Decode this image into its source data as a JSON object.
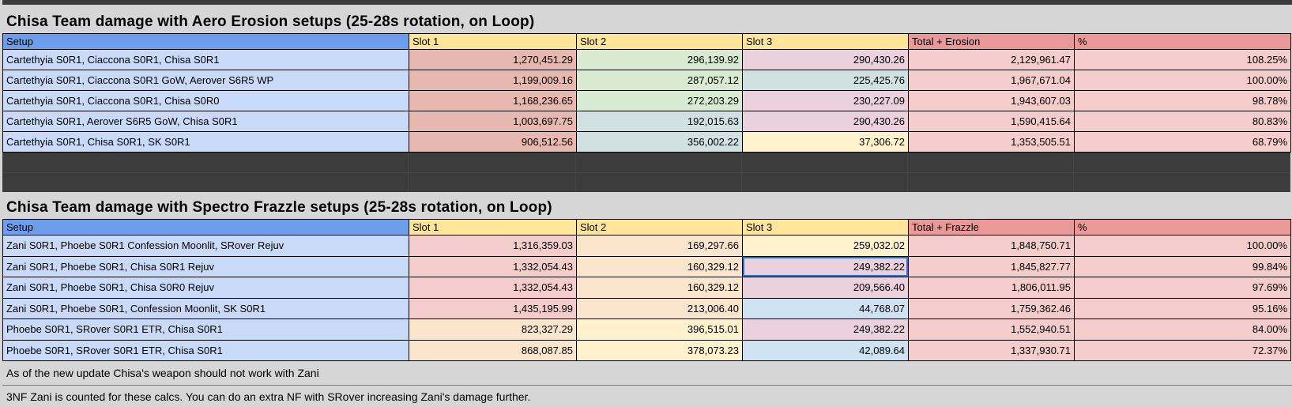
{
  "colors": {
    "header_setup_bg": "#6d9eeb",
    "header_slot_bg": "#ffe599",
    "header_total_bg": "#ea9999",
    "setup_cell_bg": "#c9daf8",
    "total_cell_bg": "#f4cccc",
    "selection_border": "#1a73e8",
    "title_bar_bg": "#d6d6d6",
    "dark_band_bg": "#3c3c3c"
  },
  "tables": [
    {
      "title": "Chisa Team damage with Aero Erosion setups (25-28s rotation, on Loop)",
      "headers": [
        "Setup",
        "Slot 1",
        "Slot 2",
        "Slot 3",
        "Total + Erosion",
        "%"
      ],
      "rows": [
        {
          "cells": [
            {
              "v": "Cartethyia S0R1, Ciaccona S0R1, Chisa S0R1",
              "bg": "#c9daf8"
            },
            {
              "v": "1,270,451.29",
              "bg": "#e6b8af"
            },
            {
              "v": "296,139.92",
              "bg": "#d9ead3"
            },
            {
              "v": "290,430.26",
              "bg": "#ead1dc"
            },
            {
              "v": "2,129,961.47",
              "bg": "#f4cccc"
            },
            {
              "v": "108.25%",
              "bg": "#f4cccc"
            }
          ]
        },
        {
          "cells": [
            {
              "v": "Cartethyia S0R1, Ciaccona S0R1 GoW, Aerover S6R5 WP",
              "bg": "#c9daf8"
            },
            {
              "v": "1,199,009.16",
              "bg": "#e6b8af"
            },
            {
              "v": "287,057.12",
              "bg": "#d9ead3"
            },
            {
              "v": "225,425.76",
              "bg": "#d0e0e3"
            },
            {
              "v": "1,967,671.04",
              "bg": "#f4cccc"
            },
            {
              "v": "100.00%",
              "bg": "#f4cccc"
            }
          ]
        },
        {
          "cells": [
            {
              "v": "Cartethyia S0R1, Ciaccona S0R1, Chisa S0R0",
              "bg": "#c9daf8"
            },
            {
              "v": "1,168,236.65",
              "bg": "#e6b8af"
            },
            {
              "v": "272,203.29",
              "bg": "#d9ead3"
            },
            {
              "v": "230,227.09",
              "bg": "#ead1dc"
            },
            {
              "v": "1,943,607.03",
              "bg": "#f4cccc"
            },
            {
              "v": "98.78%",
              "bg": "#f4cccc"
            }
          ]
        },
        {
          "cells": [
            {
              "v": "Cartethyia S0R1, Aerover S6R5 GoW, Chisa S0R1",
              "bg": "#c9daf8"
            },
            {
              "v": "1,003,697.75",
              "bg": "#e6b8af"
            },
            {
              "v": "192,015.63",
              "bg": "#d0e0e3"
            },
            {
              "v": "290,430.26",
              "bg": "#ead1dc"
            },
            {
              "v": "1,590,415.64",
              "bg": "#f4cccc"
            },
            {
              "v": "80.83%",
              "bg": "#f4cccc"
            }
          ]
        },
        {
          "cells": [
            {
              "v": "Cartethyia S0R1, Chisa S0R1, SK S0R1",
              "bg": "#c9daf8"
            },
            {
              "v": "906,512.56",
              "bg": "#e6b8af"
            },
            {
              "v": "356,002.22",
              "bg": "#d0e0e3"
            },
            {
              "v": "37,306.72",
              "bg": "#fff2cc"
            },
            {
              "v": "1,353,505.51",
              "bg": "#f4cccc"
            },
            {
              "v": "68.79%",
              "bg": "#f4cccc"
            }
          ]
        }
      ]
    },
    {
      "title": "Chisa Team damage with Spectro Frazzle setups (25-28s rotation, on Loop)",
      "headers": [
        "Setup",
        "Slot 1",
        "Slot 2",
        "Slot 3",
        "Total + Frazzle",
        "%"
      ],
      "rows": [
        {
          "cells": [
            {
              "v": "Zani S0R1, Phoebe S0R1 Confession Moonlit, SRover Rejuv",
              "bg": "#c9daf8"
            },
            {
              "v": "1,316,359.03",
              "bg": "#f4cccc"
            },
            {
              "v": "169,297.66",
              "bg": "#fce5cd"
            },
            {
              "v": "259,032.02",
              "bg": "#fff2cc"
            },
            {
              "v": "1,848,750.71",
              "bg": "#f4cccc"
            },
            {
              "v": "100.00%",
              "bg": "#f4cccc"
            }
          ]
        },
        {
          "cells": [
            {
              "v": "Zani S0R1, Phoebe S0R1, Chisa S0R1 Rejuv",
              "bg": "#c9daf8"
            },
            {
              "v": "1,332,054.43",
              "bg": "#f4cccc"
            },
            {
              "v": "160,329.12",
              "bg": "#fce5cd"
            },
            {
              "v": "249,382.22",
              "bg": "#ead1dc",
              "selected": true
            },
            {
              "v": "1,845,827.77",
              "bg": "#f4cccc"
            },
            {
              "v": "99.84%",
              "bg": "#f4cccc"
            }
          ]
        },
        {
          "cells": [
            {
              "v": "Zani S0R1, Phoebe S0R1, Chisa S0R0 Rejuv",
              "bg": "#c9daf8"
            },
            {
              "v": "1,332,054.43",
              "bg": "#f4cccc"
            },
            {
              "v": "160,329.12",
              "bg": "#fce5cd"
            },
            {
              "v": "209,566.40",
              "bg": "#ead1dc"
            },
            {
              "v": "1,806,011.95",
              "bg": "#f4cccc"
            },
            {
              "v": "97.69%",
              "bg": "#f4cccc"
            }
          ]
        },
        {
          "cells": [
            {
              "v": "Zani S0R1, Phoebe S0R1, Confession Moonlit, SK S0R1",
              "bg": "#c9daf8"
            },
            {
              "v": "1,435,195.99",
              "bg": "#f4cccc"
            },
            {
              "v": "213,006.40",
              "bg": "#fce5cd"
            },
            {
              "v": "44,768.07",
              "bg": "#cfe2f3"
            },
            {
              "v": "1,759,362.46",
              "bg": "#f4cccc"
            },
            {
              "v": "95.16%",
              "bg": "#f4cccc"
            }
          ]
        },
        {
          "cells": [
            {
              "v": "Phoebe S0R1, SRover S0R1 ETR, Chisa S0R1",
              "bg": "#c9daf8"
            },
            {
              "v": "823,327.29",
              "bg": "#fce5cd"
            },
            {
              "v": "396,515.01",
              "bg": "#fff2cc"
            },
            {
              "v": "249,382.22",
              "bg": "#ead1dc"
            },
            {
              "v": "1,552,940.51",
              "bg": "#f4cccc"
            },
            {
              "v": "84.00%",
              "bg": "#f4cccc"
            }
          ]
        },
        {
          "cells": [
            {
              "v": "Phoebe S0R1, SRover S0R1 ETR, Chisa S0R1",
              "bg": "#c9daf8"
            },
            {
              "v": "868,087.85",
              "bg": "#fce5cd"
            },
            {
              "v": "378,073.23",
              "bg": "#fff2cc"
            },
            {
              "v": "42,089.64",
              "bg": "#cfe2f3"
            },
            {
              "v": "1,337,930.71",
              "bg": "#f4cccc"
            },
            {
              "v": "72.37%",
              "bg": "#f4cccc"
            }
          ]
        }
      ]
    }
  ],
  "notes": [
    "As of the new update Chisa's weapon should not work with Zani",
    "3NF Zani is counted for these calcs. You can do an extra NF with SRover increasing Zani's damage further."
  ]
}
